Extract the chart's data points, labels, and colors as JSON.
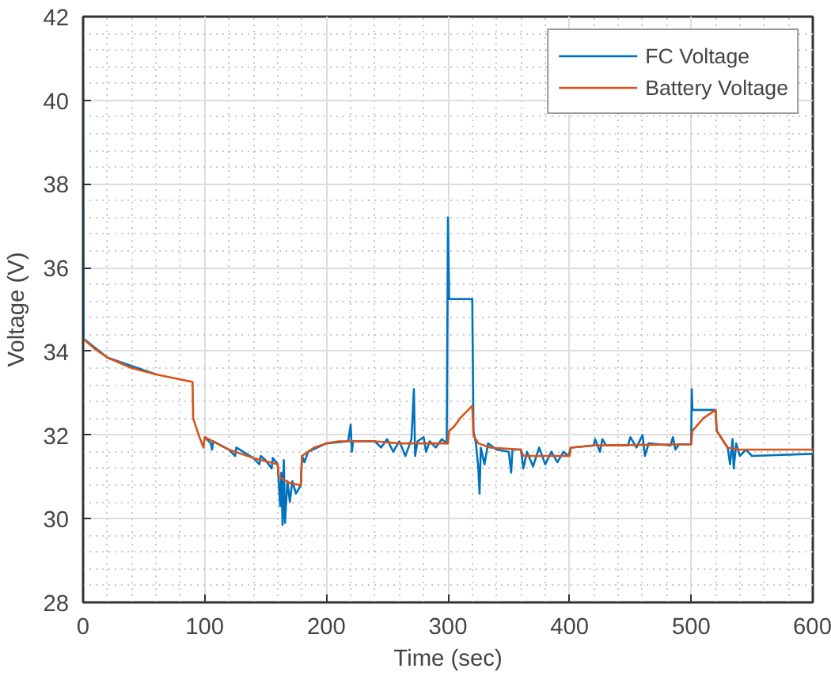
{
  "chart_data": {
    "type": "line",
    "xlabel": "Time (sec)",
    "ylabel": "Voltage (V)",
    "xlim": [
      0,
      600
    ],
    "ylim": [
      28,
      42
    ],
    "xticks": [
      0,
      100,
      200,
      300,
      400,
      500,
      600
    ],
    "yticks": [
      28,
      30,
      32,
      34,
      36,
      38,
      40,
      42
    ],
    "grid": true,
    "legend": "top right",
    "marker": "none",
    "line_style": "solid",
    "series": [
      {
        "name": "FC Voltage",
        "color": "#0072bd",
        "x": [
          0,
          0.5,
          20,
          60,
          90,
          90.5,
          99,
          100,
          105,
          106,
          107,
          120,
          125,
          126,
          140,
          145,
          146,
          150,
          155,
          156,
          160,
          162,
          163,
          164,
          165,
          166,
          168,
          170,
          172,
          175,
          179,
          180,
          182,
          185,
          200,
          218,
          220,
          221,
          222,
          240,
          245,
          250,
          255,
          260,
          265,
          270,
          272,
          273,
          275,
          280,
          282,
          285,
          290,
          295,
          299,
          300,
          301,
          320,
          321,
          323,
          325,
          326,
          327,
          330,
          333,
          340,
          350,
          352,
          353,
          360,
          362,
          365,
          370,
          375,
          380,
          385,
          390,
          395,
          399,
          401,
          420,
          421,
          425,
          427,
          430,
          448,
          450,
          455,
          460,
          462,
          465,
          483,
          485,
          487,
          490,
          500,
          500.5,
          501,
          520,
          521,
          530,
          532,
          534,
          535,
          537,
          540,
          545,
          550,
          600
        ],
        "values": [
          40.5,
          34.3,
          33.85,
          33.45,
          null,
          null,
          null,
          31.95,
          31.8,
          31.65,
          31.85,
          31.65,
          31.5,
          31.7,
          31.45,
          31.3,
          31.5,
          31.4,
          31.2,
          31.45,
          31.3,
          30.3,
          31.1,
          29.85,
          31.4,
          29.9,
          30.9,
          30.4,
          30.9,
          30.6,
          30.8,
          31.5,
          31.35,
          31.6,
          31.8,
          31.85,
          32.25,
          31.6,
          31.85,
          31.85,
          31.7,
          31.9,
          31.6,
          31.85,
          31.5,
          31.9,
          33.1,
          31.5,
          31.85,
          31.95,
          31.6,
          31.85,
          31.7,
          31.9,
          31.8,
          37.2,
          35.25,
          35.25,
          32.1,
          31.8,
          31.2,
          30.6,
          31.7,
          31.3,
          31.8,
          31.65,
          31.6,
          31.1,
          31.65,
          31.65,
          31.2,
          31.6,
          31.25,
          31.7,
          31.3,
          31.6,
          31.35,
          31.6,
          31.5,
          31.7,
          31.75,
          31.9,
          31.6,
          31.9,
          31.75,
          31.75,
          31.95,
          31.7,
          32.0,
          31.5,
          31.8,
          31.75,
          31.95,
          31.65,
          31.78,
          31.78,
          33.1,
          32.6,
          32.6,
          32.1,
          31.7,
          31.3,
          31.9,
          31.2,
          31.8,
          31.5,
          31.65,
          31.5,
          31.55
        ]
      },
      {
        "name": "Battery Voltage",
        "color": "#d95319",
        "x": [
          0,
          10,
          20,
          40,
          60,
          90,
          90.5,
          95,
          99,
          100,
          120,
          140,
          160,
          161,
          170,
          179,
          180,
          190,
          200,
          210,
          240,
          260,
          300,
          301,
          305,
          310,
          320,
          321,
          325,
          335,
          360,
          362,
          400,
          401,
          420,
          500,
          501,
          510,
          520,
          521,
          530,
          540,
          600
        ],
        "values": [
          34.3,
          34.05,
          33.85,
          33.6,
          33.45,
          33.27,
          32.4,
          32.0,
          31.7,
          31.95,
          31.65,
          31.45,
          31.3,
          31.0,
          30.85,
          30.8,
          31.5,
          31.7,
          31.8,
          31.85,
          31.85,
          31.8,
          31.8,
          32.1,
          32.2,
          32.4,
          32.7,
          32.0,
          31.8,
          31.7,
          31.65,
          31.5,
          31.5,
          31.7,
          31.75,
          31.78,
          32.1,
          32.4,
          32.6,
          32.1,
          31.7,
          31.65,
          31.65
        ]
      }
    ]
  }
}
